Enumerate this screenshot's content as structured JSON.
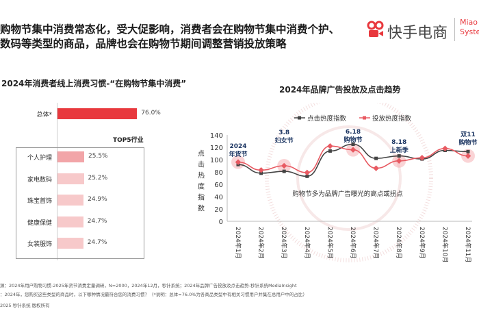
{
  "headline": [
    "购物节集中消费常态化，受大促影响，消费者会在购物节集中消费个护、",
    "数码等类型的商品，品牌也会在购物节期间调整营销投放策略"
  ],
  "logo": {
    "brand": "快手电商",
    "partner": [
      "Miao",
      "Syste"
    ]
  },
  "colors": {
    "accent": "#e8383d",
    "bar_light": "#f7c9ca",
    "bar_mid": "#f2a5a8",
    "line_click": "#444444",
    "line_ad": "#e85a62",
    "annot": "#1f3864"
  },
  "chart_data": [
    {
      "type": "bar",
      "orientation": "horizontal",
      "title": "2024年消费者线上消费习惯-“在购物节集中消费”",
      "overall": {
        "label": "总体*",
        "value": 76.0,
        "display": "76.0%"
      },
      "group_title": "TOP5行业",
      "categories": [
        "个人护理",
        "家电数码",
        "珠宝首饰",
        "健康保健",
        "女装服饰"
      ],
      "values": [
        25.5,
        25.2,
        24.9,
        24.7,
        24.7
      ],
      "displays": [
        "25.5%",
        "25.2%",
        "24.9%",
        "24.7%",
        "24.7%"
      ]
    },
    {
      "type": "line",
      "title": "2024年品牌广告投放及点击趋势",
      "ylabel": "点击热度指数",
      "ylim": [
        0,
        140
      ],
      "yticks": [
        0,
        20,
        40,
        60,
        80,
        100,
        120,
        140
      ],
      "categories": [
        "2024年1月",
        "2024年2月",
        "2024年3月",
        "2024年4月",
        "2024年5月",
        "2024年6月",
        "2024年7月",
        "2024年8月",
        "2024年9月",
        "2024年10月",
        "2024年11月"
      ],
      "series": [
        {
          "name": "点击热度指数",
          "values": [
            92,
            78,
            81,
            73,
            114,
            125,
            102,
            106,
            101,
            115,
            113
          ]
        },
        {
          "name": "投放热度指数",
          "values": [
            96,
            83,
            90,
            79,
            122,
            116,
            86,
            98,
            103,
            118,
            106
          ]
        }
      ],
      "annotations": [
        {
          "month_index": 0,
          "lines": [
            "2024",
            "年货节"
          ]
        },
        {
          "month_index": 2,
          "lines": [
            "3.8",
            "妇女节"
          ]
        },
        {
          "month_index": 5,
          "lines": [
            "6.18",
            "购物节"
          ]
        },
        {
          "month_index": 7,
          "lines": [
            "8.18",
            "上新季"
          ]
        },
        {
          "month_index": 10,
          "lines": [
            "双11",
            "购物节"
          ]
        }
      ],
      "note": "购物节多为品牌广告曝光的高点或拐点",
      "legend": "top-center"
    }
  ],
  "footer": [
    "源：2024年用户购物习惯-2025年货节消费定量调研，N=2000，2024年12月，秒针系统；2024年品牌广告投放及点击趋势-秒针系统MediaInsight",
    "：2024年，您购买这些类型的商品时，以下哪种情况最符合您的消费习惯？（*说明：总体=76.0%为各商品类型中有相关习惯用户并集在总用户中的占比）",
    "2025 秒针系统 版权所有"
  ]
}
